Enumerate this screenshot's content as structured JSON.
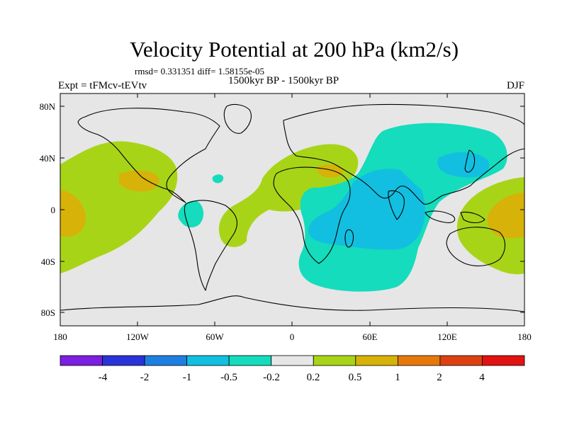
{
  "header": {
    "title": "Velocity Potential at 200 hPa (km2/s)",
    "stats": "rmsd= 0.331351 diff= 1.58155e-05",
    "experiment": "Expt = tFMcv-tEVtv",
    "period": "1500kyr BP - 1500kyr BP",
    "season": "DJF"
  },
  "axes": {
    "x_ticks": [
      "180",
      "120W",
      "60W",
      "0",
      "60E",
      "120E",
      "180"
    ],
    "y_ticks": [
      "80N",
      "40N",
      "0",
      "40S",
      "80S"
    ]
  },
  "colorbar": {
    "colors": [
      "#7b1fe0",
      "#2a33d8",
      "#1e7fe0",
      "#12bfe0",
      "#14dcbc",
      "#e6e6e6",
      "#a8d418",
      "#d7b208",
      "#e6780a",
      "#dd4010",
      "#e11212"
    ],
    "labels": [
      "-4",
      "-2",
      "-1",
      "-0.5",
      "-0.2",
      "0.2",
      "0.5",
      "1",
      "2",
      "4"
    ]
  },
  "regions": {
    "pos_low": "#a8d418",
    "pos_mid": "#d7b208",
    "neg_low": "#14dcbc",
    "neg_mid": "#12bfe0",
    "neg_high": "#1e7fe0"
  }
}
